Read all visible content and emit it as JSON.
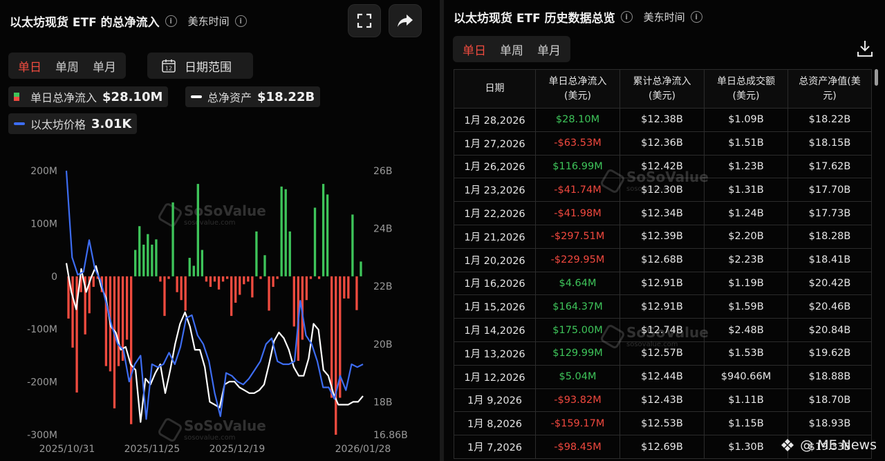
{
  "left": {
    "title": "以太坊现货 ETF 的总净流入",
    "timezone": "美东时间",
    "tabs": [
      "单日",
      "单周",
      "单月"
    ],
    "active_tab": "单日",
    "date_range_label": "日期范围",
    "calendar_day": "12",
    "legend": {
      "daily_label": "单日总净流入",
      "daily_value": "$28.10M",
      "assets_label": "总净资产",
      "assets_value": "$18.22B",
      "price_label": "以太坊价格",
      "price_value": "3.01K"
    },
    "watermark": "SoSoValue",
    "watermark_sub": "sosovalue.com"
  },
  "right": {
    "title": "以太坊现货 ETF 历史数据总览",
    "timezone": "美东时间",
    "tabs": [
      "单日",
      "单周",
      "单月"
    ],
    "active_tab": "单日",
    "columns": [
      "日期",
      "单日总净流入\n(美元)",
      "累计总净流入\n(美元)",
      "单日总成交额\n(美元)",
      "总资产净值(美\n元)"
    ],
    "rows": [
      {
        "date": "1月 28,2026",
        "flow": "$28.10M",
        "sign": "pos",
        "cum": "$12.38B",
        "vol": "$1.09B",
        "nav": "$18.22B"
      },
      {
        "date": "1月 27,2026",
        "flow": "-$63.53M",
        "sign": "neg",
        "cum": "$12.36B",
        "vol": "$1.51B",
        "nav": "$18.15B"
      },
      {
        "date": "1月 26,2026",
        "flow": "$116.99M",
        "sign": "pos",
        "cum": "$12.42B",
        "vol": "$1.23B",
        "nav": "$17.62B"
      },
      {
        "date": "1月 23,2026",
        "flow": "-$41.74M",
        "sign": "neg",
        "cum": "$12.30B",
        "vol": "$1.31B",
        "nav": "$17.70B"
      },
      {
        "date": "1月 22,2026",
        "flow": "-$41.98M",
        "sign": "neg",
        "cum": "$12.34B",
        "vol": "$1.24B",
        "nav": "$17.73B"
      },
      {
        "date": "1月 21,2026",
        "flow": "-$297.51M",
        "sign": "neg",
        "cum": "$12.39B",
        "vol": "$2.20B",
        "nav": "$18.28B"
      },
      {
        "date": "1月 20,2026",
        "flow": "-$229.95M",
        "sign": "neg",
        "cum": "$12.68B",
        "vol": "$2.23B",
        "nav": "$18.41B"
      },
      {
        "date": "1月 16,2026",
        "flow": "$4.64M",
        "sign": "pos",
        "cum": "$12.91B",
        "vol": "$1.19B",
        "nav": "$20.42B"
      },
      {
        "date": "1月 15,2026",
        "flow": "$164.37M",
        "sign": "pos",
        "cum": "$12.91B",
        "vol": "$1.59B",
        "nav": "$20.46B"
      },
      {
        "date": "1月 14,2026",
        "flow": "$175.00M",
        "sign": "pos",
        "cum": "$12.74B",
        "vol": "$2.48B",
        "nav": "$20.84B"
      },
      {
        "date": "1月 13,2026",
        "flow": "$129.99M",
        "sign": "pos",
        "cum": "$12.57B",
        "vol": "$1.53B",
        "nav": "$19.62B"
      },
      {
        "date": "1月 12,2026",
        "flow": "$5.04M",
        "sign": "pos",
        "cum": "$12.44B",
        "vol": "$940.66M",
        "nav": "$18.88B"
      },
      {
        "date": "1月 9,2026",
        "flow": "-$93.82M",
        "sign": "neg",
        "cum": "$12.43B",
        "vol": "$1.11B",
        "nav": "$18.70B"
      },
      {
        "date": "1月 8,2026",
        "flow": "-$159.17M",
        "sign": "neg",
        "cum": "$12.53B",
        "vol": "$1.15B",
        "nav": "$18.93B"
      },
      {
        "date": "1月 7,2026",
        "flow": "-$98.45M",
        "sign": "neg",
        "cum": "$12.69B",
        "vol": "$1.30B",
        "nav": "$19.33B"
      }
    ],
    "watermark": "SoSoValue",
    "watermark_sub": "sosovalue.com",
    "footer_brand": "@ ME News"
  },
  "colors": {
    "inflow": "#3ec45a",
    "outflow": "#ef4b3f",
    "assets_line": "#ffffff",
    "price_line": "#3d6df2",
    "active_tab": "#ef4b3f"
  },
  "chart_data": {
    "type": "bar+line",
    "y_left_ticks": [
      "200M",
      "100M",
      "0",
      "-100M",
      "-200M",
      "-300M"
    ],
    "y_left_range": [
      -300,
      200
    ],
    "y_right_ticks": [
      "26B",
      "24B",
      "22B",
      "20B",
      "18B",
      "16.86B"
    ],
    "y_right_range": [
      16.86,
      26
    ],
    "x_ticks": [
      "2025/10/31",
      "2025/11/25",
      "2025/12/19",
      "2026/01/28"
    ],
    "series": [
      {
        "name": "单日总净流入",
        "unit": "M USD",
        "values": [
          -80,
          -135,
          -220,
          -30,
          -110,
          -70,
          -20,
          -5,
          -30,
          -170,
          -180,
          -250,
          -170,
          -160,
          -120,
          -280,
          50,
          95,
          60,
          80,
          60,
          70,
          -10,
          -75,
          -5,
          140,
          -30,
          -45,
          -65,
          35,
          20,
          175,
          50,
          -10,
          -20,
          -10,
          -25,
          -10,
          -5,
          -75,
          -50,
          -35,
          -15,
          -10,
          -40,
          85,
          -5,
          40,
          -65,
          -20,
          -5,
          170,
          165,
          85,
          -95,
          -160,
          -120,
          -45,
          -5,
          130,
          -5,
          175,
          155,
          -230,
          -300,
          -230,
          -42,
          -42,
          117,
          -64,
          28
        ]
      },
      {
        "name": "总净资产",
        "unit": "B USD",
        "values": [
          22.8,
          21.8,
          21.2,
          22.6,
          21.8,
          22.3,
          22.7,
          22.0,
          21.6,
          20.6,
          20.4,
          19.8,
          19.9,
          19.3,
          19.1,
          17.3,
          18.8,
          18.6,
          19.0,
          19.3,
          18.3,
          19.1,
          20.0,
          20.7,
          21.1,
          20.6,
          19.8,
          19.8,
          19.2,
          18.0,
          17.9,
          17.8,
          18.6,
          18.7,
          18.7,
          18.5,
          18.4,
          18.3,
          18.3,
          18.4,
          18.6,
          19.3,
          20.1,
          20.4,
          20.2,
          19.8,
          19.2,
          18.9,
          18.9,
          19.5,
          20.7,
          20.5,
          19.1,
          18.9,
          18.3,
          17.9,
          17.9,
          17.9,
          18.0,
          18.0,
          18.2
        ]
      },
      {
        "name": "以太坊价格",
        "unit": "K USD",
        "values": [
          26.0,
          23.0,
          22.4,
          22.5,
          23.6,
          22.6,
          22.2,
          21.4,
          20.6,
          20.0,
          19.8,
          18.7,
          19.3,
          19.6,
          17.4,
          19.3,
          19.2,
          19.3,
          19.7,
          19.3,
          19.9,
          20.9,
          21.0,
          20.3,
          20.0,
          19.4,
          18.3,
          17.5,
          19.0,
          18.9,
          18.7,
          18.6,
          18.8,
          19.1,
          19.4,
          20.0,
          20.2,
          19.4,
          19.3,
          19.3,
          19.4,
          21.5,
          20.3,
          20.0,
          19.4,
          18.5,
          18.5,
          18.1,
          18.9,
          18.4,
          19.3,
          19.2,
          19.3
        ]
      }
    ]
  }
}
